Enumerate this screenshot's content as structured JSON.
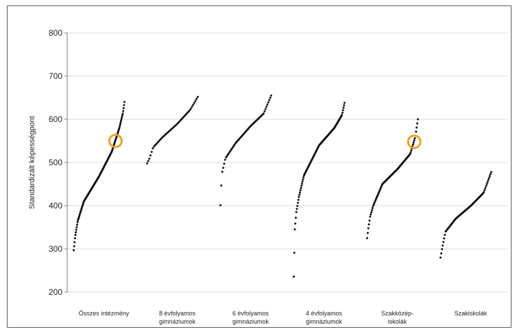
{
  "chart_data": {
    "type": "scatter",
    "ylabel": "Standardizált képességpont",
    "ylim": [
      200,
      800
    ],
    "yticks": [
      200,
      300,
      400,
      500,
      600,
      700,
      800
    ],
    "grid": true,
    "categories": [
      [
        "Összes intézmény"
      ],
      [
        "8 évfolyamos",
        "gimnáziumok"
      ],
      [
        "6 évfolyamos",
        "gimnáziumok"
      ],
      [
        "4 évfolyamos",
        "gimnáziumok"
      ],
      [
        "Szakközép-",
        "iskolák"
      ],
      [
        "Szakiskolák"
      ]
    ],
    "marker_color": "#111111",
    "highlight_color": "#f0a020",
    "series": [
      {
        "category": 0,
        "n": 120,
        "profile": [
          [
            0,
            297
          ],
          [
            0.03,
            330
          ],
          [
            0.08,
            365
          ],
          [
            0.2,
            410
          ],
          [
            0.5,
            468
          ],
          [
            0.75,
            525
          ],
          [
            0.9,
            580
          ],
          [
            0.97,
            615
          ],
          [
            1,
            640
          ]
        ],
        "highlight": 550
      },
      {
        "category": 1,
        "n": 45,
        "profile": [
          [
            0,
            498
          ],
          [
            0.05,
            510
          ],
          [
            0.12,
            535
          ],
          [
            0.3,
            558
          ],
          [
            0.6,
            590
          ],
          [
            0.85,
            622
          ],
          [
            1,
            652
          ]
        ]
      },
      {
        "category": 2,
        "n": 55,
        "profile": [
          [
            0,
            401
          ],
          [
            0.03,
            475
          ],
          [
            0.1,
            510
          ],
          [
            0.3,
            545
          ],
          [
            0.6,
            585
          ],
          [
            0.85,
            613
          ],
          [
            1,
            655
          ]
        ]
      },
      {
        "category": 3,
        "n": 100,
        "profile": [
          [
            0,
            236
          ],
          [
            0.02,
            345
          ],
          [
            0.05,
            385
          ],
          [
            0.1,
            420
          ],
          [
            0.2,
            470
          ],
          [
            0.5,
            540
          ],
          [
            0.8,
            580
          ],
          [
            0.95,
            610
          ],
          [
            1,
            638
          ]
        ]
      },
      {
        "category": 4,
        "n": 85,
        "profile": [
          [
            0,
            325
          ],
          [
            0.02,
            345
          ],
          [
            0.06,
            375
          ],
          [
            0.12,
            400
          ],
          [
            0.3,
            450
          ],
          [
            0.6,
            485
          ],
          [
            0.85,
            520
          ],
          [
            0.95,
            560
          ],
          [
            1,
            600
          ]
        ],
        "highlight": 548
      },
      {
        "category": 5,
        "n": 70,
        "profile": [
          [
            0,
            280
          ],
          [
            0.03,
            300
          ],
          [
            0.1,
            340
          ],
          [
            0.3,
            370
          ],
          [
            0.6,
            400
          ],
          [
            0.85,
            430
          ],
          [
            1,
            478
          ]
        ]
      }
    ]
  }
}
